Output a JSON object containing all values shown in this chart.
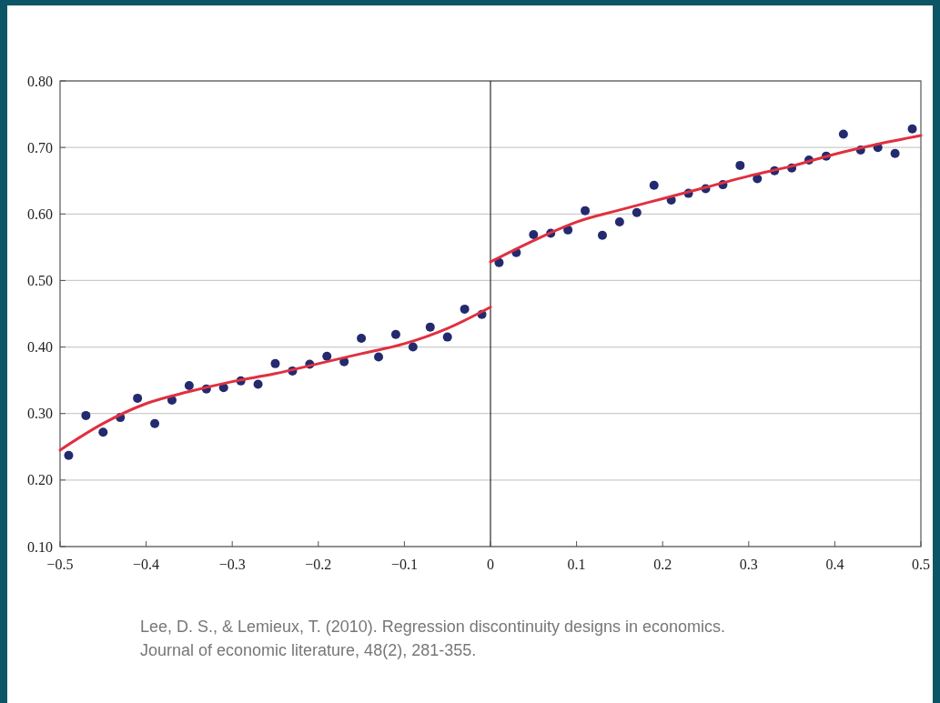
{
  "chart_data": {
    "type": "scatter",
    "x": [
      -0.49,
      -0.47,
      -0.45,
      -0.43,
      -0.41,
      -0.39,
      -0.37,
      -0.35,
      -0.33,
      -0.31,
      -0.29,
      -0.27,
      -0.25,
      -0.23,
      -0.21,
      -0.19,
      -0.17,
      -0.15,
      -0.13,
      -0.11,
      -0.09,
      -0.07,
      -0.05,
      -0.03,
      -0.01,
      0.01,
      0.03,
      0.05,
      0.07,
      0.09,
      0.11,
      0.13,
      0.15,
      0.17,
      0.19,
      0.21,
      0.23,
      0.25,
      0.27,
      0.29,
      0.31,
      0.33,
      0.35,
      0.37,
      0.39,
      0.41,
      0.43,
      0.45,
      0.47,
      0.49
    ],
    "series": [
      {
        "color": "#232a6e",
        "marker": "circle",
        "values": [
          0.237,
          0.297,
          0.272,
          0.294,
          0.323,
          0.285,
          0.32,
          0.342,
          0.337,
          0.339,
          0.349,
          0.344,
          0.375,
          0.364,
          0.374,
          0.386,
          0.378,
          0.413,
          0.385,
          0.419,
          0.4,
          0.43,
          0.415,
          0.457,
          0.449,
          0.527,
          0.542,
          0.569,
          0.571,
          0.576,
          0.605,
          0.568,
          0.588,
          0.602,
          0.643,
          0.621,
          0.631,
          0.638,
          0.644,
          0.673,
          0.653,
          0.665,
          0.669,
          0.681,
          0.687,
          0.72,
          0.696,
          0.7,
          0.691,
          0.728
        ]
      },
      {
        "type": "line",
        "color": "#e0303f",
        "x": [
          -0.5,
          -0.45,
          -0.4,
          -0.35,
          -0.3,
          -0.25,
          -0.2,
          -0.15,
          -0.1,
          -0.05,
          0
        ],
        "values": [
          0.245,
          0.285,
          0.315,
          0.333,
          0.348,
          0.36,
          0.375,
          0.39,
          0.405,
          0.428,
          0.46
        ]
      },
      {
        "type": "line",
        "color": "#e0303f",
        "x": [
          0,
          0.05,
          0.1,
          0.15,
          0.2,
          0.25,
          0.3,
          0.35,
          0.4,
          0.45,
          0.5
        ],
        "values": [
          0.528,
          0.56,
          0.588,
          0.606,
          0.623,
          0.64,
          0.657,
          0.672,
          0.69,
          0.705,
          0.718
        ]
      }
    ],
    "xlim": [
      -0.5,
      0.5
    ],
    "xticks": [
      {
        "value": -0.5,
        "label": "−0.5"
      },
      {
        "value": -0.4,
        "label": "−0.4"
      },
      {
        "value": -0.3,
        "label": "−0.3"
      },
      {
        "value": -0.2,
        "label": "−0.2"
      },
      {
        "value": -0.1,
        "label": "−0.1"
      },
      0,
      0.1,
      0.2,
      0.3,
      0.4,
      0.5
    ],
    "ylim": [
      0.1,
      0.8
    ],
    "yticks": [
      {
        "value": 0.1,
        "label": "0.10"
      },
      {
        "value": 0.2,
        "label": "0.20"
      },
      {
        "value": 0.3,
        "label": "0.30"
      },
      {
        "value": 0.4,
        "label": "0.40"
      },
      {
        "value": 0.5,
        "label": "0.50"
      },
      {
        "value": 0.6,
        "label": "0.60"
      },
      {
        "value": 0.7,
        "label": "0.70"
      },
      {
        "value": 0.8,
        "label": "0.80"
      }
    ],
    "grid": "y",
    "ref_lines": [
      {
        "axis": "x",
        "value": 0,
        "color": "#000000"
      }
    ],
    "annotations": [
      "Lee, D. S., & Lemieux, T. (2010). Regression discontinuity designs in economics.",
      "Journal of economic literature, 48(2), 281-355."
    ]
  }
}
